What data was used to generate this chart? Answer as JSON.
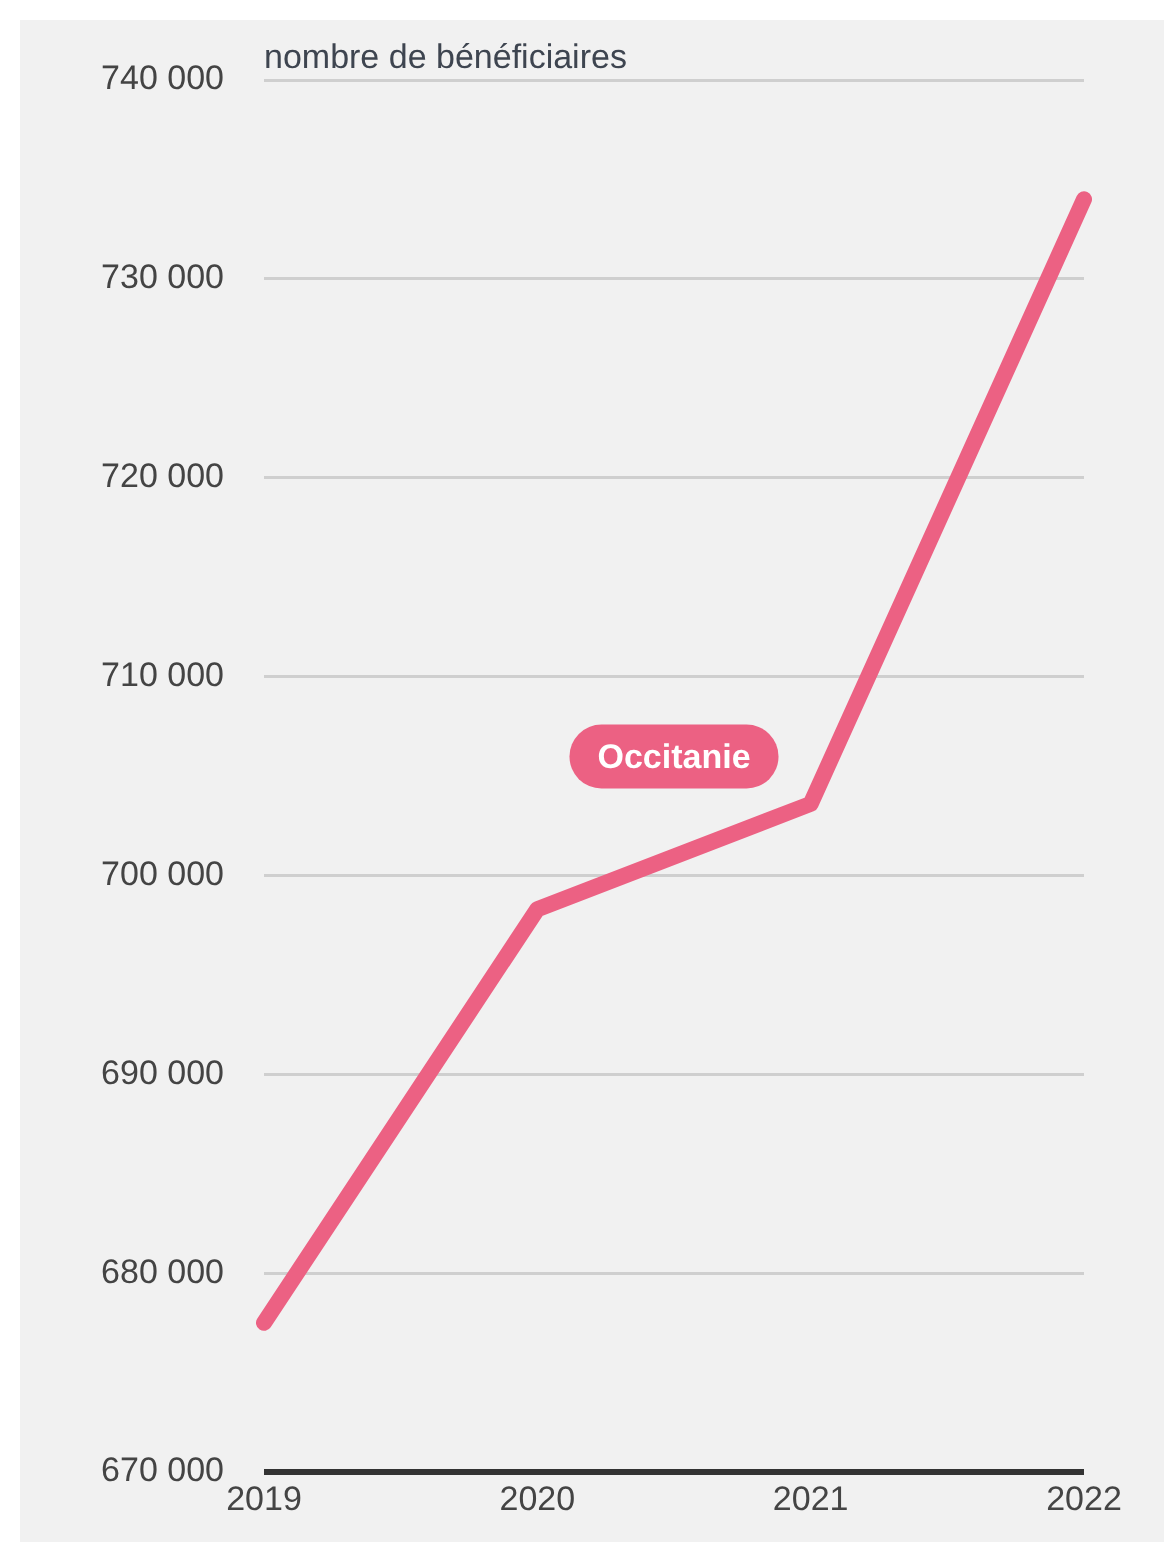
{
  "chart_data": {
    "type": "line",
    "ylabel": "nombre de bénéficiaires",
    "categories": [
      "2019",
      "2020",
      "2021",
      "2022"
    ],
    "series": [
      {
        "name": "Occitanie",
        "color": "#ec6183",
        "values": [
          677500,
          698300,
          703600,
          734000
        ]
      }
    ],
    "ylim": [
      670000,
      740000
    ],
    "yticks": [
      {
        "value": 670000,
        "label": "670 000"
      },
      {
        "value": 680000,
        "label": "680 000"
      },
      {
        "value": 690000,
        "label": "690 000"
      },
      {
        "value": 700000,
        "label": "700 000"
      },
      {
        "value": 710000,
        "label": "710 000"
      },
      {
        "value": 720000,
        "label": "720 000"
      },
      {
        "value": 730000,
        "label": "730 000"
      },
      {
        "value": 740000,
        "label": "740 000"
      }
    ],
    "grid": "y",
    "legend": false,
    "marker": "none",
    "line_style": "solid"
  }
}
